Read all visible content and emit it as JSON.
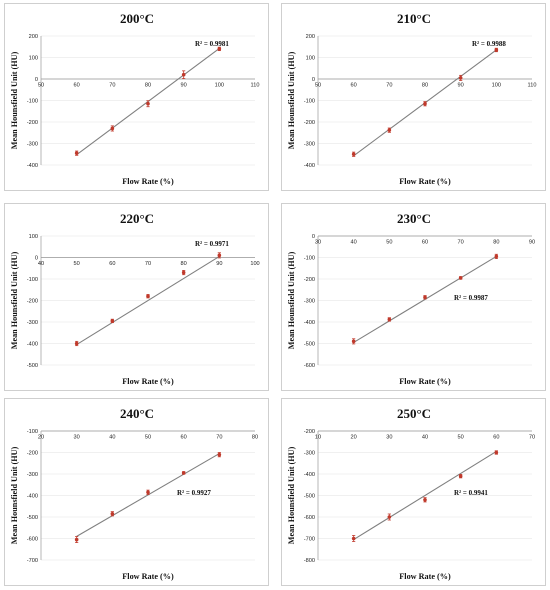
{
  "colors": {
    "trendline": "#808080",
    "marker": "#c0392b",
    "errorbar": "#c0392b",
    "axis": "#999999",
    "grid": "#e2e2e2"
  },
  "chart_data": [
    {
      "type": "scatter",
      "title": "200°C",
      "xlabel": "Flow Rate (%)",
      "ylabel": "Mean Hounsfield Unit (HU)",
      "xlim": [
        50,
        110
      ],
      "ylim": [
        -400,
        200
      ],
      "xticks": [
        50,
        60,
        70,
        80,
        90,
        100,
        110
      ],
      "yticks": [
        -400,
        -300,
        -200,
        -100,
        0,
        100,
        200
      ],
      "x_axis_at": 0,
      "grid": true,
      "series": [
        {
          "x": [
            60,
            70,
            80,
            90,
            100
          ],
          "y": [
            -345,
            -230,
            -115,
            20,
            140
          ],
          "error": [
            10,
            12,
            14,
            18,
            8
          ]
        }
      ],
      "trendline": [
        [
          60,
          -352
        ],
        [
          100,
          142
        ]
      ],
      "r2_label": "R² = 0.9981",
      "r2_position": "top-right"
    },
    {
      "type": "scatter",
      "title": "210°C",
      "xlabel": "Flow Rate (%)",
      "ylabel": "Mean Hounsfield Unit (HU)",
      "xlim": [
        50,
        110
      ],
      "ylim": [
        -400,
        200
      ],
      "xticks": [
        50,
        60,
        70,
        80,
        90,
        100,
        110
      ],
      "yticks": [
        -400,
        -300,
        -200,
        -100,
        0,
        100,
        200
      ],
      "x_axis_at": 0,
      "grid": true,
      "series": [
        {
          "x": [
            60,
            70,
            80,
            90,
            100
          ],
          "y": [
            -350,
            -238,
            -115,
            5,
            135
          ],
          "error": [
            10,
            10,
            10,
            12,
            8
          ]
        }
      ],
      "trendline": [
        [
          60,
          -357
        ],
        [
          100,
          135
        ]
      ],
      "r2_label": "R² = 0.9988",
      "r2_position": "top-right"
    },
    {
      "type": "scatter",
      "title": "220°C",
      "xlabel": "Flow Rate (%)",
      "ylabel": "Mean Hounsfield Unit (HU)",
      "xlim": [
        40,
        100
      ],
      "ylim": [
        -500,
        100
      ],
      "xticks": [
        40,
        50,
        60,
        70,
        80,
        90,
        100
      ],
      "yticks": [
        -500,
        -400,
        -300,
        -200,
        -100,
        0,
        100
      ],
      "x_axis_at": 0,
      "grid": true,
      "series": [
        {
          "x": [
            50,
            60,
            70,
            80,
            90
          ],
          "y": [
            -400,
            -295,
            -180,
            -70,
            10
          ],
          "error": [
            10,
            8,
            8,
            10,
            12
          ]
        }
      ],
      "trendline": [
        [
          50,
          -405
        ],
        [
          90,
          5
        ]
      ],
      "r2_label": "R² = 0.9971",
      "r2_position": "top-right"
    },
    {
      "type": "scatter",
      "title": "230°C",
      "xlabel": "Flow Rate (%)",
      "ylabel": "Mean Hounsfield Unit (HU)",
      "xlim": [
        30,
        90
      ],
      "ylim": [
        -600,
        0
      ],
      "xticks": [
        30,
        40,
        50,
        60,
        70,
        80,
        90
      ],
      "yticks": [
        -600,
        -500,
        -400,
        -300,
        -200,
        -100,
        0
      ],
      "x_axis_at": 0,
      "grid": true,
      "series": [
        {
          "x": [
            40,
            50,
            60,
            70,
            80
          ],
          "y": [
            -490,
            -388,
            -285,
            -195,
            -95
          ],
          "error": [
            12,
            8,
            8,
            6,
            10
          ]
        }
      ],
      "trendline": [
        [
          40,
          -495
        ],
        [
          80,
          -95
        ]
      ],
      "r2_label": "R² = 0.9987",
      "r2_position": "center-right"
    },
    {
      "type": "scatter",
      "title": "240°C",
      "xlabel": "Flow Rate (%)",
      "ylabel": "Mean Hounsfield Unit (HU)",
      "xlim": [
        20,
        80
      ],
      "ylim": [
        -700,
        -100
      ],
      "xticks": [
        20,
        30,
        40,
        50,
        60,
        70,
        80
      ],
      "yticks": [
        -700,
        -600,
        -500,
        -400,
        -300,
        -200,
        -100
      ],
      "x_axis_at": -100,
      "grid": true,
      "series": [
        {
          "x": [
            30,
            40,
            50,
            60,
            70
          ],
          "y": [
            -605,
            -485,
            -385,
            -295,
            -210
          ],
          "error": [
            14,
            10,
            10,
            6,
            10
          ]
        }
      ],
      "trendline": [
        [
          30,
          -590
        ],
        [
          70,
          -205
        ]
      ],
      "r2_label": "R² = 0.9927",
      "r2_position": "center-right"
    },
    {
      "type": "scatter",
      "title": "250°C",
      "xlabel": "Flow Rate (%)",
      "ylabel": "Mean Hounsfield Unit (HU)",
      "xlim": [
        10,
        70
      ],
      "ylim": [
        -800,
        -200
      ],
      "xticks": [
        10,
        20,
        30,
        40,
        50,
        60,
        70
      ],
      "yticks": [
        -800,
        -700,
        -600,
        -500,
        -400,
        -300,
        -200
      ],
      "x_axis_at": -200,
      "grid": true,
      "series": [
        {
          "x": [
            20,
            30,
            40,
            50,
            60
          ],
          "y": [
            -700,
            -600,
            -520,
            -410,
            -300
          ],
          "error": [
            14,
            14,
            10,
            8,
            8
          ]
        }
      ],
      "trendline": [
        [
          20,
          -705
        ],
        [
          60,
          -295
        ]
      ],
      "r2_label": "R² = 0.9941",
      "r2_position": "center-right"
    }
  ]
}
